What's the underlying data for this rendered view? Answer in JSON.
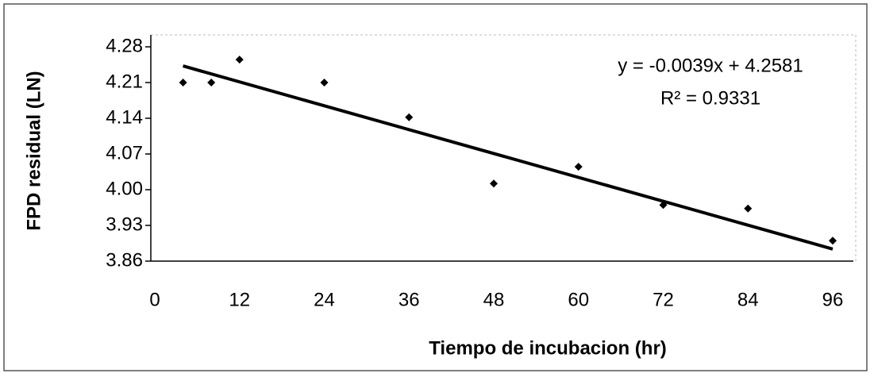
{
  "chart_data": {
    "type": "scatter",
    "x_label": "Tiempo de incubacion (hr)",
    "y_label": "FPD residual (LN)",
    "x": [
      4,
      8,
      12,
      24,
      36,
      48,
      60,
      72,
      84,
      96
    ],
    "series": [
      {
        "name": "FPD",
        "color": "#000000",
        "values": [
          4.21,
          4.21,
          4.255,
          4.21,
          4.142,
          4.012,
          4.045,
          3.97,
          3.963,
          3.9
        ]
      }
    ],
    "trendline": {
      "slope": -0.0039,
      "intercept": 4.2581,
      "color": "#000000",
      "label": "y = -0.0039x + 4.2581",
      "r_squared": 0.9331,
      "r_squared_label": "R² = 0.9331"
    },
    "xlim": [
      0,
      96
    ],
    "xticks": [
      0,
      12,
      24,
      36,
      48,
      60,
      72,
      84,
      96
    ],
    "ylim": [
      3.86,
      4.28
    ],
    "yticks": [
      3.86,
      3.93,
      {
        "value": 4,
        "label": "4.00"
      },
      4.07,
      4.14,
      4.21,
      4.28
    ],
    "grid": false
  }
}
